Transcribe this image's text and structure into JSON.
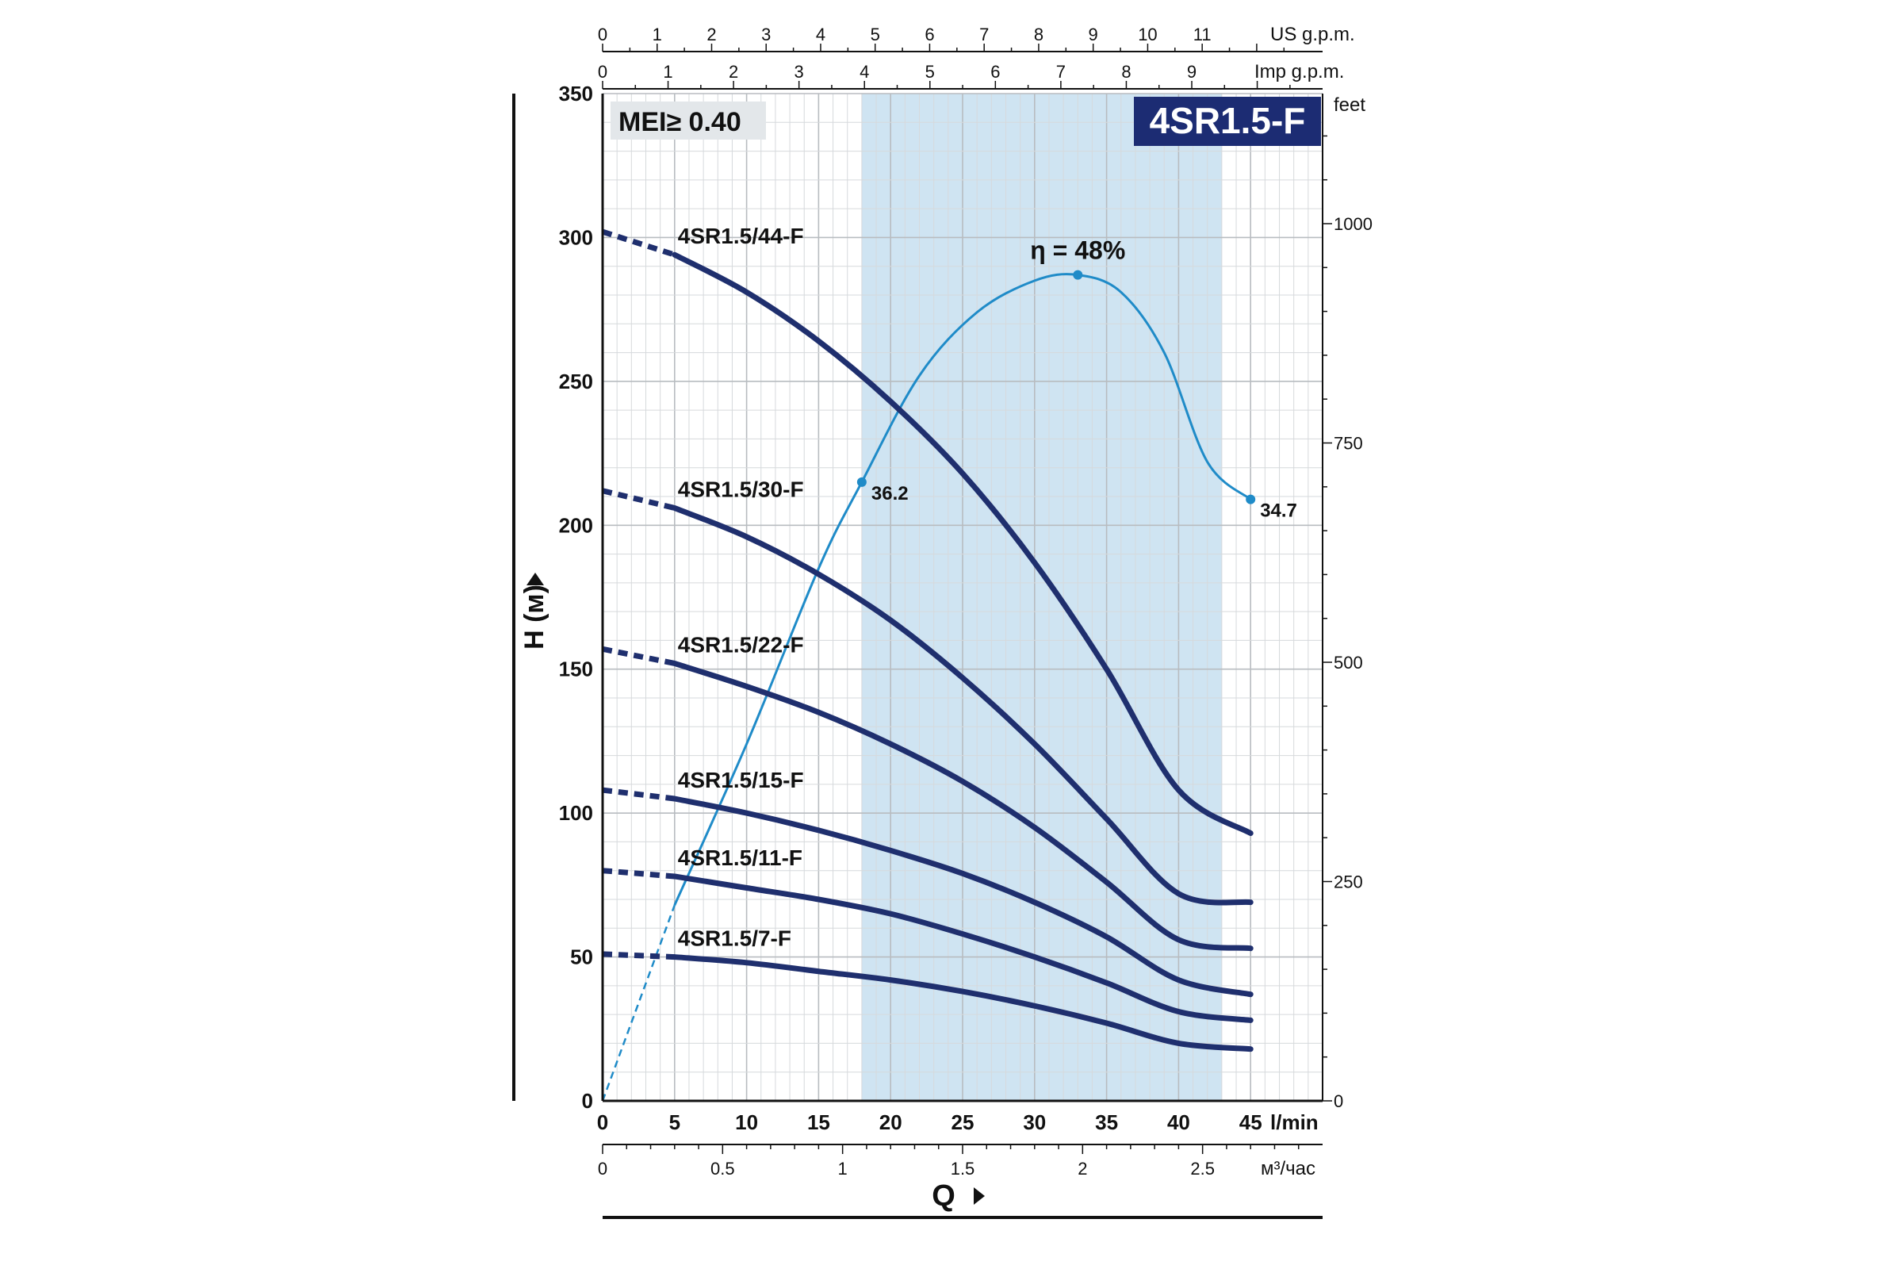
{
  "chart_data": {
    "type": "line",
    "title": "4SR1.5-F",
    "badge": "MEI≥ 0.40",
    "xlabel": "Q",
    "ylabel": "H (м)",
    "x_unit": "l/min",
    "xlim": [
      0,
      50
    ],
    "ylim": [
      0,
      350
    ],
    "x_ticks": [
      0,
      5,
      10,
      15,
      20,
      25,
      30,
      35,
      40,
      45
    ],
    "y_ticks": [
      0,
      50,
      100,
      150,
      200,
      250,
      300,
      350
    ],
    "grid": true,
    "best_efficiency_range": [
      18,
      43
    ],
    "secondary_axes": {
      "us_gpm": {
        "unit": "US g.p.m.",
        "ticks": [
          0,
          1,
          2,
          3,
          4,
          5,
          6,
          7,
          8,
          9,
          10,
          11
        ]
      },
      "imp_gpm": {
        "unit": "Imp g.p.m.",
        "ticks": [
          0,
          1,
          2,
          3,
          4,
          5,
          6,
          7,
          8,
          9
        ]
      },
      "feet": {
        "unit": "feet",
        "ticks": [
          0,
          250,
          500,
          750,
          1000
        ]
      },
      "m3h": {
        "unit": "м³/час",
        "ticks": [
          "0",
          "0.5",
          "1",
          "1.5",
          "2",
          "2.5"
        ]
      }
    },
    "series": [
      {
        "name": "4SR1.5/44-F",
        "dashed_x": [
          0,
          5
        ],
        "dashed_y": [
          302,
          294
        ],
        "x": [
          5,
          10,
          15,
          20,
          25,
          30,
          35,
          40,
          45
        ],
        "y": [
          294,
          281,
          264,
          243,
          218,
          187,
          150,
          108,
          93
        ]
      },
      {
        "name": "4SR1.5/30-F",
        "dashed_x": [
          0,
          5
        ],
        "dashed_y": [
          212,
          206
        ],
        "x": [
          5,
          10,
          15,
          20,
          25,
          30,
          35,
          40,
          45
        ],
        "y": [
          206,
          196,
          183,
          167,
          147,
          124,
          98,
          72,
          69
        ]
      },
      {
        "name": "4SR1.5/22-F",
        "dashed_x": [
          0,
          5
        ],
        "dashed_y": [
          157,
          152
        ],
        "x": [
          5,
          10,
          15,
          20,
          25,
          30,
          35,
          40,
          45
        ],
        "y": [
          152,
          144,
          135,
          124,
          111,
          95,
          76,
          56,
          53
        ]
      },
      {
        "name": "4SR1.5/15-F",
        "dashed_x": [
          0,
          5
        ],
        "dashed_y": [
          108,
          105
        ],
        "x": [
          5,
          10,
          15,
          20,
          25,
          30,
          35,
          40,
          45
        ],
        "y": [
          105,
          100,
          94,
          87,
          79,
          69,
          57,
          42,
          37
        ]
      },
      {
        "name": "4SR1.5/11-F",
        "dashed_x": [
          0,
          5
        ],
        "dashed_y": [
          80,
          78
        ],
        "x": [
          5,
          10,
          15,
          20,
          25,
          30,
          35,
          40,
          45
        ],
        "y": [
          78,
          74,
          70,
          65,
          58,
          50,
          41,
          31,
          28
        ]
      },
      {
        "name": "4SR1.5/7-F",
        "dashed_x": [
          0,
          5
        ],
        "dashed_y": [
          51,
          50
        ],
        "x": [
          5,
          10,
          15,
          20,
          25,
          30,
          35,
          40,
          45
        ],
        "y": [
          50,
          48,
          45,
          42,
          38,
          33,
          27,
          20,
          18
        ]
      }
    ],
    "efficiency": {
      "label": "η = 48%",
      "dashed_x": [
        0,
        5
      ],
      "dashed_y": [
        0,
        68
      ],
      "x": [
        5,
        10,
        15,
        18,
        22,
        26,
        30,
        33,
        36,
        39,
        42,
        45
      ],
      "y": [
        68,
        124,
        185,
        215,
        252,
        274,
        285,
        287,
        281,
        260,
        222,
        209
      ],
      "points": [
        {
          "x": 18,
          "y": 215,
          "label": "36.2"
        },
        {
          "x": 33,
          "y": 287,
          "label": ""
        },
        {
          "x": 45,
          "y": 209,
          "label": "34.7"
        }
      ]
    }
  }
}
